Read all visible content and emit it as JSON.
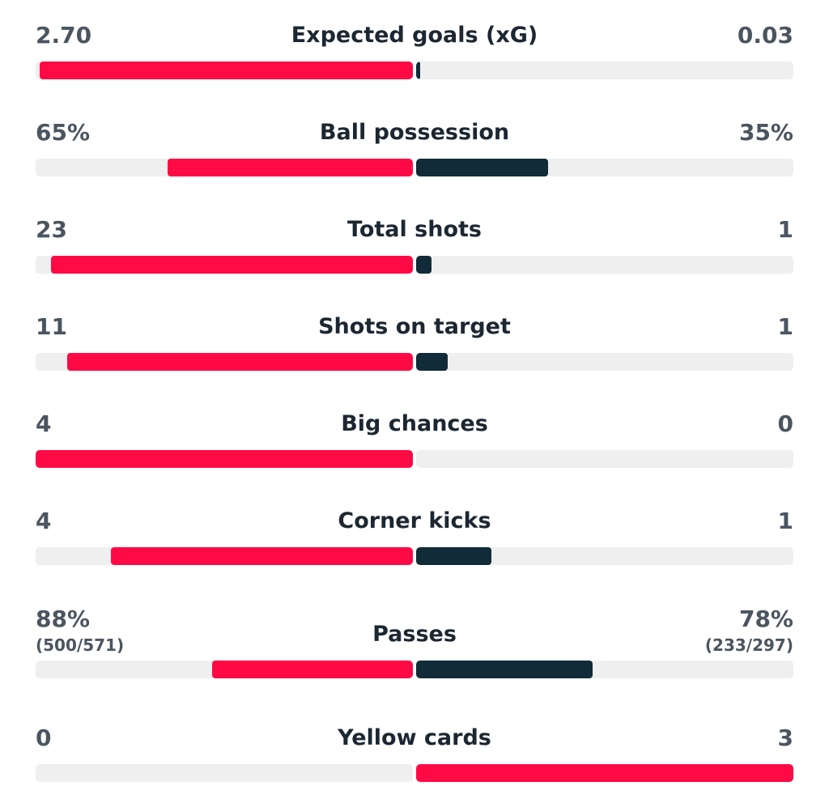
{
  "colors": {
    "home": "#ff0a45",
    "away": "#112b38",
    "track": "#efefef"
  },
  "stats": [
    {
      "title": "Expected goals (xG)",
      "left": "2.70",
      "right": "0.03",
      "left_fraction": 0.99,
      "right_fraction": 0.01,
      "left_color": "home",
      "right_color": "away"
    },
    {
      "title": "Ball possession",
      "left": "65%",
      "right": "35%",
      "left_fraction": 0.65,
      "right_fraction": 0.35,
      "left_color": "home",
      "right_color": "away"
    },
    {
      "title": "Total shots",
      "left": "23",
      "right": "1",
      "left_fraction": 0.96,
      "right_fraction": 0.04,
      "left_color": "home",
      "right_color": "away"
    },
    {
      "title": "Shots on target",
      "left": "11",
      "right": "1",
      "left_fraction": 0.917,
      "right_fraction": 0.083,
      "left_color": "home",
      "right_color": "away"
    },
    {
      "title": "Big chances",
      "left": "4",
      "right": "0",
      "left_fraction": 1.0,
      "right_fraction": 0.0,
      "left_color": "home",
      "right_color": "away"
    },
    {
      "title": "Corner kicks",
      "left": "4",
      "right": "1",
      "left_fraction": 0.8,
      "right_fraction": 0.2,
      "left_color": "home",
      "right_color": "away"
    },
    {
      "title": "Passes",
      "left": "88%",
      "right": "78%",
      "left_sub": "(500/571)",
      "right_sub": "(233/297)",
      "left_fraction": 0.532,
      "right_fraction": 0.468,
      "left_color": "home",
      "right_color": "away"
    },
    {
      "title": "Yellow cards",
      "left": "0",
      "right": "3",
      "left_fraction": 0.0,
      "right_fraction": 1.0,
      "left_color": "away",
      "right_color": "home"
    }
  ]
}
